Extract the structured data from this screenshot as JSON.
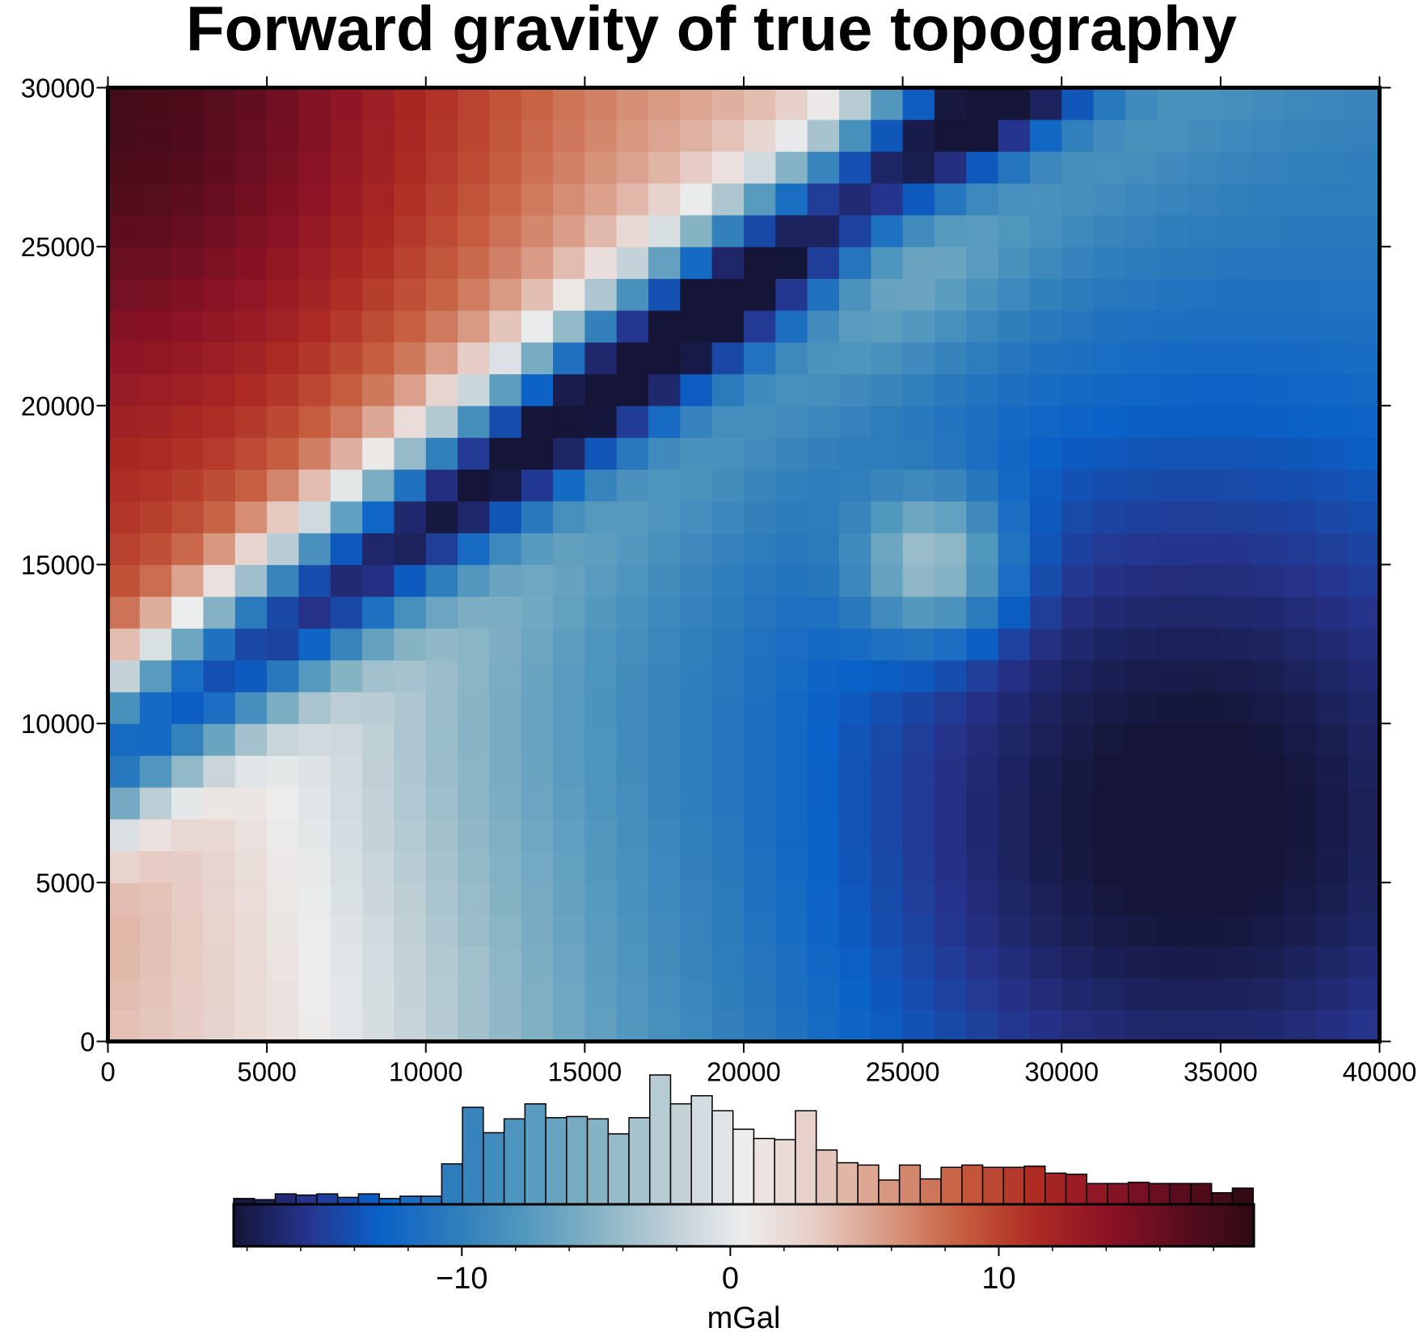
{
  "chart_data": {
    "type": "heatmap",
    "title": "Forward gravity of true topography",
    "xlim": [
      0,
      40000
    ],
    "ylim": [
      0,
      30000
    ],
    "x_ticks": [
      "0",
      "5000",
      "10000",
      "15000",
      "20000",
      "25000",
      "30000",
      "35000",
      "40000"
    ],
    "y_ticks": [
      "0",
      "5000",
      "10000",
      "15000",
      "20000",
      "25000",
      "30000"
    ],
    "x_tick_values": [
      0,
      5000,
      10000,
      15000,
      20000,
      25000,
      30000,
      35000,
      40000
    ],
    "y_tick_values": [
      0,
      5000,
      10000,
      15000,
      20000,
      25000,
      30000
    ],
    "grid_spacing": 1000,
    "grid_description": "Gravity field in mGal on a 1000 m grid: positive values in the upper-left corner and lower-left, a narrow negative band running diagonally from lower-left to upper-right, a small positive anomaly centered near (26000, 15000), and broadly negative values in the lower-right.",
    "colorbar": {
      "label": "mGal",
      "range": [
        -18.5,
        19.5
      ],
      "tick_labels": [
        "−10",
        "0",
        "10"
      ],
      "tick_values": [
        -10,
        0,
        10
      ],
      "minor_tick_values": [
        -18,
        -16,
        -14,
        -12,
        -8,
        -6,
        -4,
        -2,
        2,
        4,
        6,
        8,
        12,
        14,
        16,
        18
      ],
      "colormap": "vik (blue–white–red diverging)",
      "histogram": {
        "bin_edges_start": -18.5,
        "bin_width": 0.775,
        "counts": [
          5,
          4,
          9,
          8,
          9,
          6,
          9,
          5,
          7,
          7,
          35,
          84,
          62,
          74,
          87,
          75,
          76,
          74,
          61,
          75,
          112,
          87,
          94,
          81,
          65,
          57,
          56,
          81,
          47,
          36,
          34,
          21,
          34,
          22,
          32,
          34,
          32,
          32,
          33,
          27,
          26,
          18,
          18,
          19,
          18,
          18,
          18,
          10,
          14
        ]
      }
    },
    "colors": [
      "#141537",
      "#26338b",
      "#0a61c7",
      "#2d7cbb",
      "#5298be",
      "#86b3c4",
      "#bfcfd6",
      "#ededed",
      "#e6ccc4",
      "#d8977f",
      "#c65d3e",
      "#ad2b23",
      "#8c1326",
      "#5a0d1e",
      "#2d0a13"
    ]
  }
}
